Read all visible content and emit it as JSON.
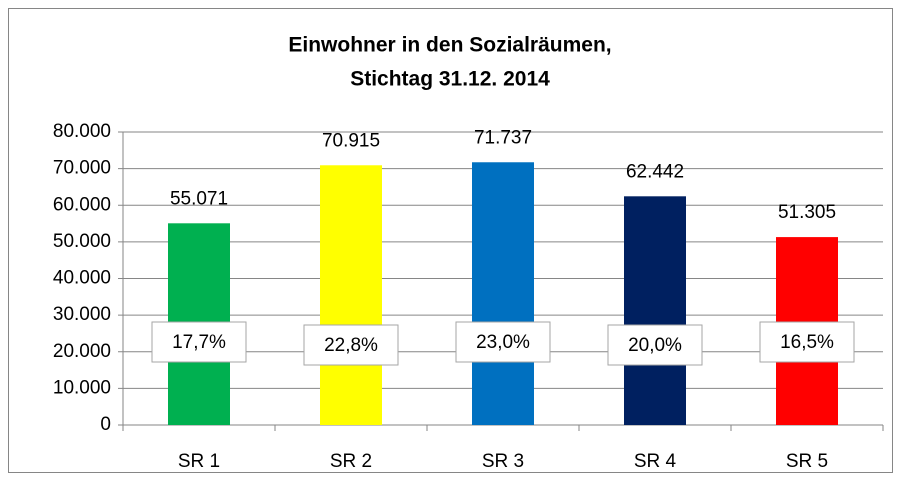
{
  "chart_data": {
    "type": "bar",
    "title": [
      "Einwohner in den Sozialräumen,",
      "Stichtag 31.12. 2014"
    ],
    "categories": [
      "SR 1",
      "SR 2",
      "SR 3",
      "SR 4",
      "SR 5"
    ],
    "values": [
      55071,
      70915,
      71737,
      62442,
      51305
    ],
    "value_labels": [
      "55.071",
      "70.915",
      "71.737",
      "62.442",
      "51.305"
    ],
    "shares": [
      "17,7%",
      "22,8%",
      "23,0%",
      "20,0%",
      "16,5%"
    ],
    "colors": [
      "#00b050",
      "#ffff00",
      "#0070c0",
      "#002060",
      "#ff0000"
    ],
    "ylim": [
      0,
      80000
    ],
    "yticks": [
      0,
      {
        "value": 10000,
        "label": "10.000"
      },
      {
        "value": 20000,
        "label": "20.000"
      },
      {
        "value": 30000,
        "label": "30.000"
      },
      {
        "value": 40000,
        "label": "40.000"
      },
      {
        "value": 50000,
        "label": "50.000"
      },
      {
        "value": 60000,
        "label": "60.000"
      },
      {
        "value": 70000,
        "label": "70.000"
      },
      {
        "value": 80000,
        "label": "80.000"
      }
    ],
    "grid": true
  }
}
